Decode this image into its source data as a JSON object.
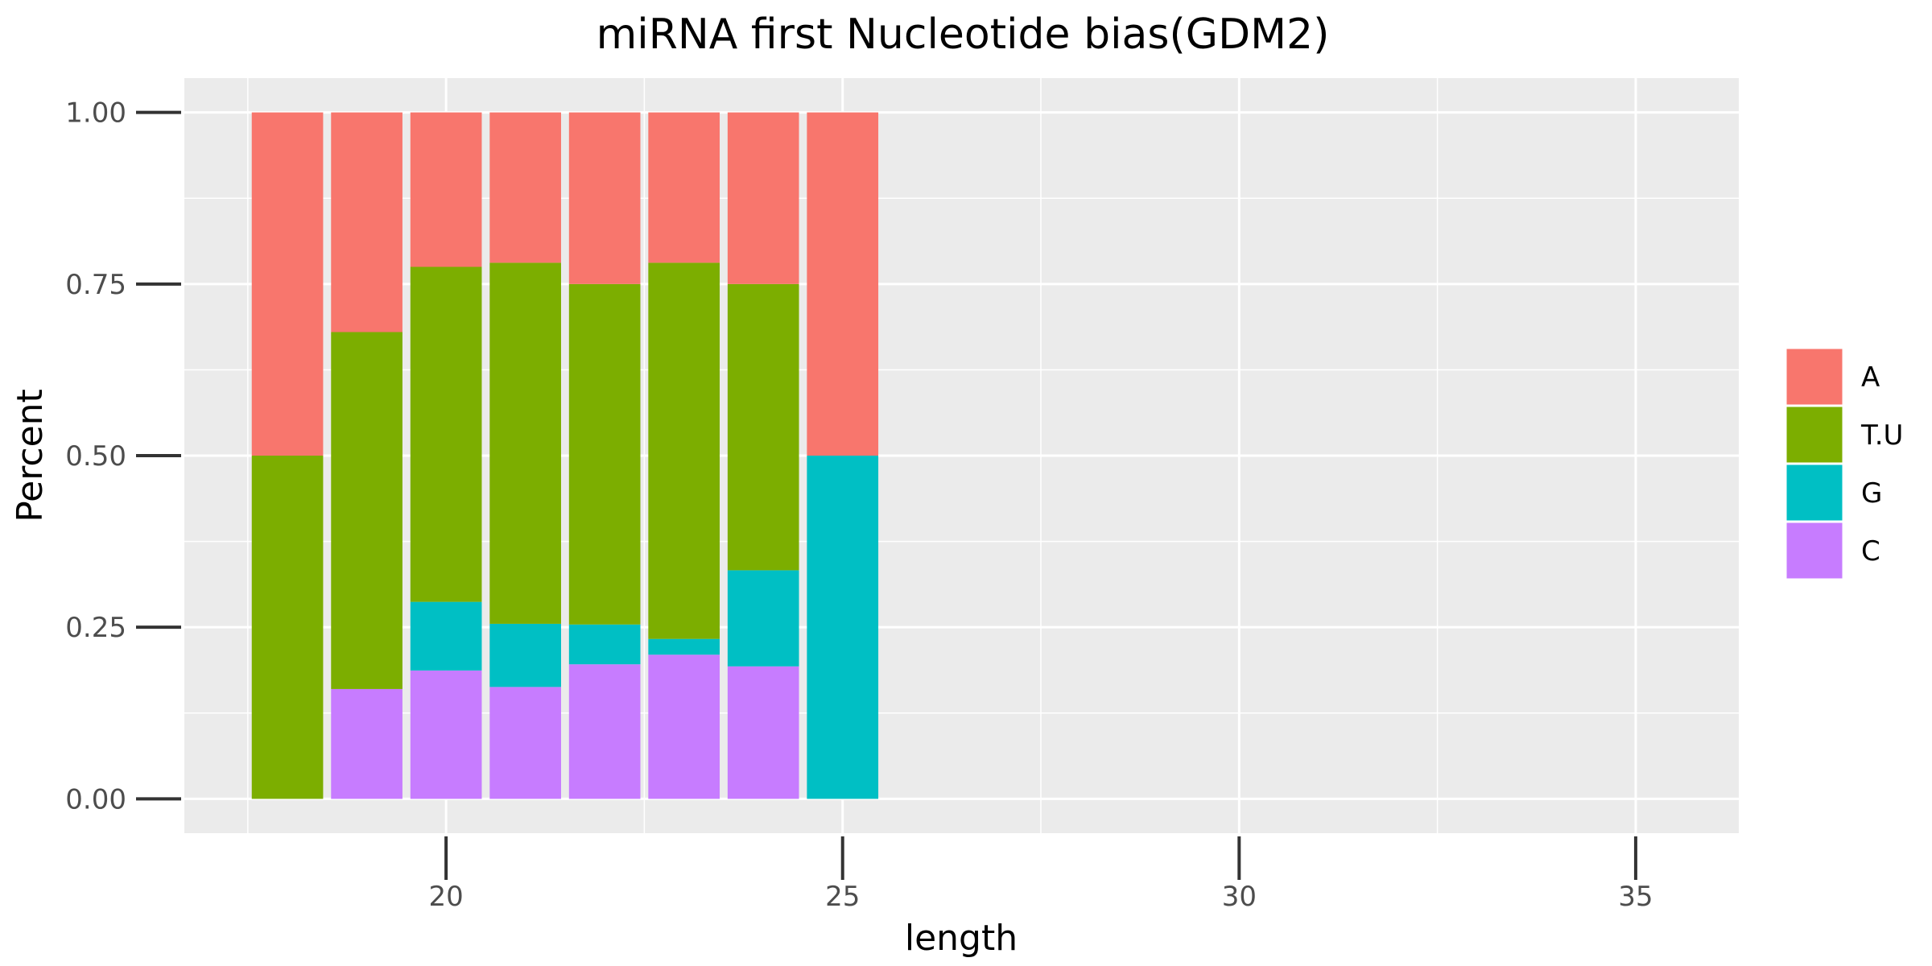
{
  "chart_data": {
    "type": "bar",
    "stacked": true,
    "title": "miRNA first Nucleotide bias(GDM2)",
    "xlabel": "length",
    "ylabel": "Percent",
    "x": [
      18,
      19,
      20,
      21,
      22,
      23,
      24,
      25
    ],
    "xlim": [
      16.7,
      36.3
    ],
    "xticks": [
      20,
      25,
      30,
      35
    ],
    "ylim": [
      -0.05,
      1.05
    ],
    "yticks": [
      0.0,
      0.25,
      0.5,
      0.75,
      1.0
    ],
    "ytick_labels": [
      "0.00",
      "0.25",
      "0.50",
      "0.75",
      "1.00"
    ],
    "grid": true,
    "legend_position": "right",
    "series": [
      {
        "name": "C",
        "color": "#C77CFF",
        "values": [
          0.0,
          0.16,
          0.187,
          0.163,
          0.196,
          0.21,
          0.193,
          0.0
        ]
      },
      {
        "name": "G",
        "color": "#00BFC4",
        "values": [
          0.0,
          0.0,
          0.1,
          0.092,
          0.058,
          0.023,
          0.14,
          0.5
        ]
      },
      {
        "name": "T.U",
        "color": "#7CAE00",
        "values": [
          0.5,
          0.52,
          0.488,
          0.526,
          0.496,
          0.548,
          0.417,
          0.0
        ]
      },
      {
        "name": "A",
        "color": "#F8766D",
        "values": [
          0.5,
          0.32,
          0.225,
          0.219,
          0.25,
          0.219,
          0.25,
          0.5
        ]
      }
    ],
    "legend_order": [
      "A",
      "T.U",
      "G",
      "C"
    ]
  }
}
